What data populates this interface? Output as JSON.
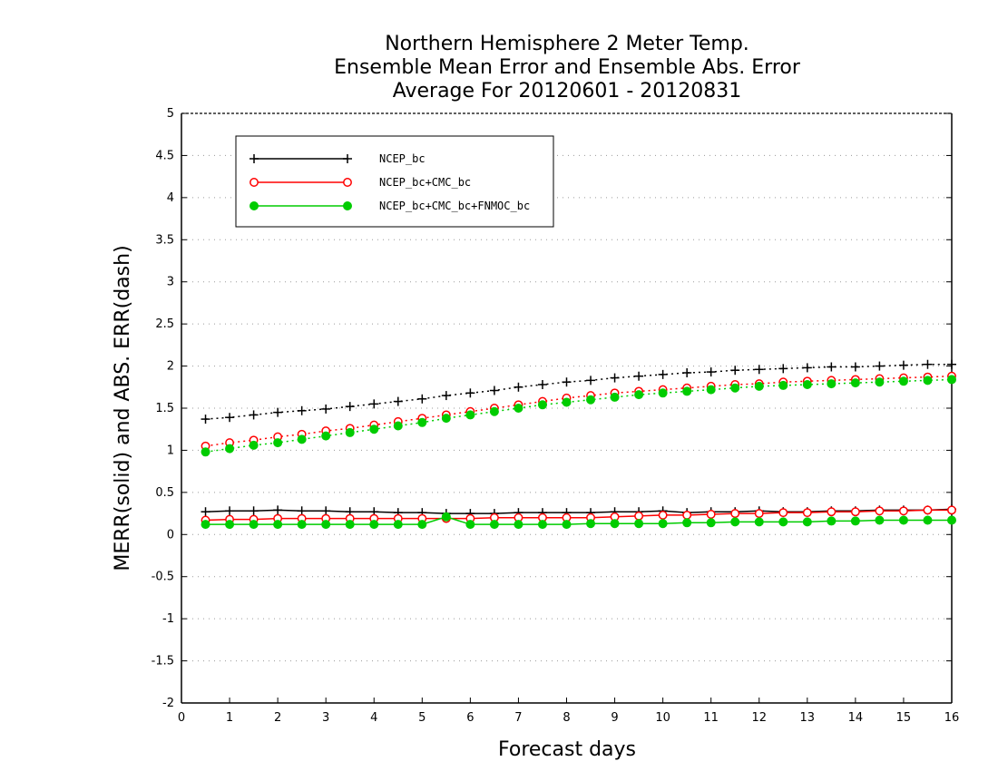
{
  "chart_data": {
    "type": "line",
    "title": [
      "Northern Hemisphere 2 Meter Temp.",
      "Ensemble Mean Error and Ensemble Abs. Error",
      "Average For 20120601 - 20120831"
    ],
    "xlabel": "Forecast days",
    "ylabel": "MERR(solid) and ABS. ERR(dash)",
    "xlim": [
      0,
      16
    ],
    "ylim": [
      -2,
      5
    ],
    "xticks": [
      0,
      1,
      2,
      3,
      4,
      5,
      6,
      7,
      8,
      9,
      10,
      11,
      12,
      13,
      14,
      15,
      16
    ],
    "yticks": [
      -2,
      -1.5,
      -1,
      -0.5,
      0,
      0.5,
      1,
      1.5,
      2,
      2.5,
      3,
      3.5,
      4,
      4.5,
      5
    ],
    "ytick_labels": [
      "-2",
      "-1.5",
      "-1",
      "-0.5",
      "0",
      "0.5",
      "1",
      "1.5",
      "2",
      "2.5",
      "3",
      "3.5",
      "4",
      "4.5",
      "5"
    ],
    "grid": true,
    "legend_position": "top-left",
    "x": [
      0.5,
      1,
      1.5,
      2,
      2.5,
      3,
      3.5,
      4,
      4.5,
      5,
      5.5,
      6,
      6.5,
      7,
      7.5,
      8,
      8.5,
      9,
      9.5,
      10,
      10.5,
      11,
      11.5,
      12,
      12.5,
      13,
      13.5,
      14,
      14.5,
      15,
      15.5,
      16
    ],
    "series": [
      {
        "name": "NCEP_bc",
        "color": "#000000",
        "marker": "plus",
        "merr": [
          0.27,
          0.28,
          0.28,
          0.29,
          0.28,
          0.28,
          0.27,
          0.27,
          0.26,
          0.26,
          0.25,
          0.25,
          0.25,
          0.26,
          0.26,
          0.26,
          0.26,
          0.27,
          0.27,
          0.28,
          0.26,
          0.27,
          0.27,
          0.28,
          0.27,
          0.27,
          0.28,
          0.28,
          0.29,
          0.29,
          0.29,
          0.3
        ],
        "abs_err": [
          1.37,
          1.39,
          1.42,
          1.45,
          1.47,
          1.49,
          1.52,
          1.55,
          1.58,
          1.61,
          1.65,
          1.68,
          1.71,
          1.75,
          1.78,
          1.81,
          1.83,
          1.86,
          1.88,
          1.9,
          1.92,
          1.93,
          1.95,
          1.96,
          1.97,
          1.98,
          1.99,
          1.99,
          2.0,
          2.01,
          2.02,
          2.02
        ]
      },
      {
        "name": "NCEP_bc+CMC_bc",
        "color": "#ff0000",
        "marker": "open-circle",
        "merr": [
          0.17,
          0.18,
          0.18,
          0.19,
          0.19,
          0.19,
          0.19,
          0.19,
          0.19,
          0.19,
          0.19,
          0.19,
          0.2,
          0.2,
          0.2,
          0.2,
          0.2,
          0.21,
          0.22,
          0.23,
          0.23,
          0.24,
          0.25,
          0.25,
          0.26,
          0.26,
          0.27,
          0.27,
          0.28,
          0.28,
          0.29,
          0.29
        ],
        "abs_err": [
          1.05,
          1.09,
          1.12,
          1.16,
          1.19,
          1.23,
          1.26,
          1.3,
          1.34,
          1.38,
          1.42,
          1.46,
          1.5,
          1.54,
          1.58,
          1.62,
          1.65,
          1.68,
          1.7,
          1.72,
          1.74,
          1.76,
          1.78,
          1.79,
          1.81,
          1.82,
          1.83,
          1.84,
          1.85,
          1.86,
          1.87,
          1.88
        ]
      },
      {
        "name": "NCEP_bc+CMC_bc+FNMOC_bc",
        "color": "#00cc00",
        "marker": "filled-circle",
        "merr": [
          0.12,
          0.12,
          0.12,
          0.12,
          0.12,
          0.12,
          0.12,
          0.12,
          0.12,
          0.12,
          0.21,
          0.12,
          0.12,
          0.12,
          0.12,
          0.12,
          0.13,
          0.13,
          0.13,
          0.13,
          0.14,
          0.14,
          0.15,
          0.15,
          0.15,
          0.15,
          0.16,
          0.16,
          0.17,
          0.17,
          0.17,
          0.17
        ],
        "abs_err": [
          0.98,
          1.02,
          1.06,
          1.09,
          1.13,
          1.17,
          1.21,
          1.25,
          1.29,
          1.33,
          1.38,
          1.42,
          1.46,
          1.5,
          1.54,
          1.57,
          1.6,
          1.63,
          1.66,
          1.68,
          1.7,
          1.72,
          1.74,
          1.76,
          1.77,
          1.78,
          1.79,
          1.8,
          1.81,
          1.82,
          1.83,
          1.84
        ]
      }
    ]
  }
}
